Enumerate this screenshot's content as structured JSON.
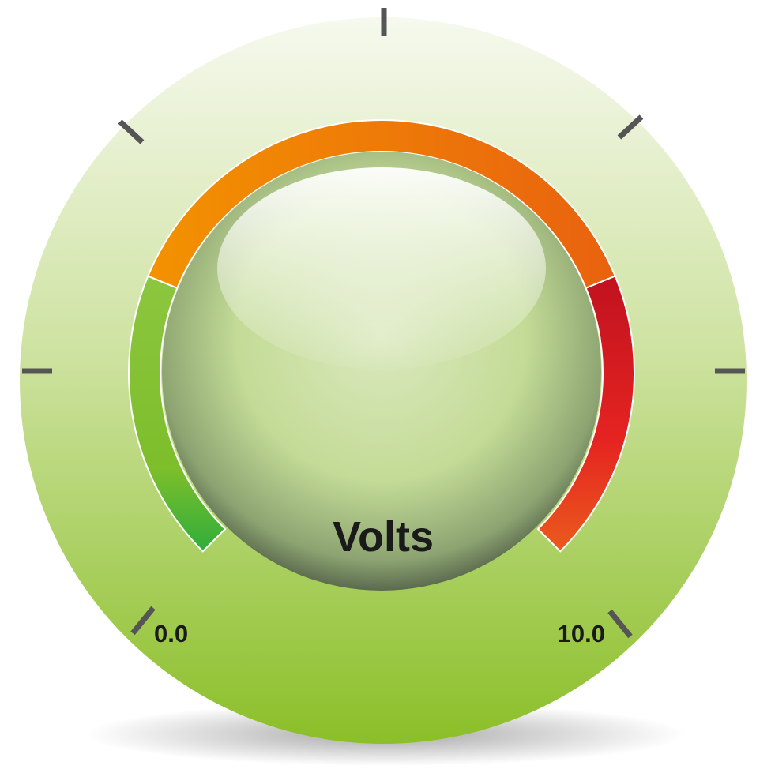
{
  "gauge": {
    "unit_label": "Volts",
    "min_label": "0.0",
    "max_label": "10.0",
    "min_value": 0.0,
    "max_value": 10.0,
    "bands": [
      {
        "name": "low",
        "from": 0.0,
        "to": 2.5,
        "colors": [
          "#2fae3a",
          "#7dbe2b",
          "#8cc63f"
        ]
      },
      {
        "name": "mid",
        "from": 2.5,
        "to": 7.5,
        "colors": [
          "#f39200",
          "#e9620f"
        ]
      },
      {
        "name": "high",
        "from": 7.5,
        "to": 10.0,
        "colors": [
          "#c1121f",
          "#e52421",
          "#ea5b1d"
        ]
      }
    ],
    "colors": {
      "face_top": "#f6f9ee",
      "face_bottom": "#8bbf28",
      "tick": "#555555",
      "label": "#1a1a1a"
    }
  }
}
